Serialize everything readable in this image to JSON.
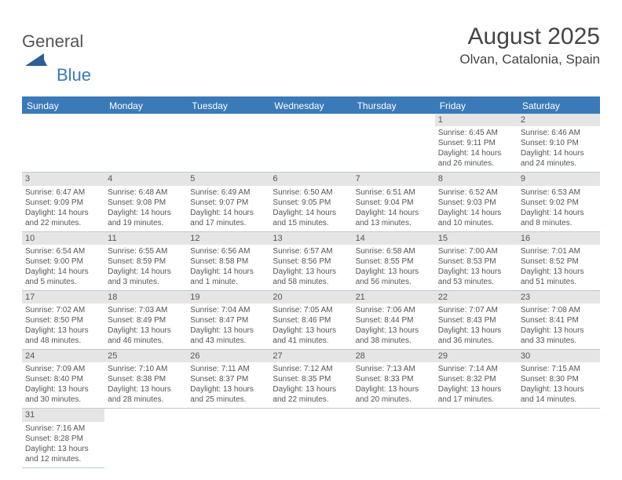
{
  "logo": {
    "part1": "General",
    "part2": "Blue"
  },
  "title": "August 2025",
  "location": "Olvan, Catalonia, Spain",
  "colors": {
    "header_bg": "#3a7ab8",
    "header_text": "#ffffff",
    "daynum_bg": "#e5e5e5",
    "grid_line": "#b9c9dc",
    "text": "#555555",
    "title_text": "#444444"
  },
  "day_headers": [
    "Sunday",
    "Monday",
    "Tuesday",
    "Wednesday",
    "Thursday",
    "Friday",
    "Saturday"
  ],
  "weeks": [
    [
      {
        "n": "",
        "sr": "",
        "ss": "",
        "dl": ""
      },
      {
        "n": "",
        "sr": "",
        "ss": "",
        "dl": ""
      },
      {
        "n": "",
        "sr": "",
        "ss": "",
        "dl": ""
      },
      {
        "n": "",
        "sr": "",
        "ss": "",
        "dl": ""
      },
      {
        "n": "",
        "sr": "",
        "ss": "",
        "dl": ""
      },
      {
        "n": "1",
        "sr": "Sunrise: 6:45 AM",
        "ss": "Sunset: 9:11 PM",
        "dl": "Daylight: 14 hours and 26 minutes."
      },
      {
        "n": "2",
        "sr": "Sunrise: 6:46 AM",
        "ss": "Sunset: 9:10 PM",
        "dl": "Daylight: 14 hours and 24 minutes."
      }
    ],
    [
      {
        "n": "3",
        "sr": "Sunrise: 6:47 AM",
        "ss": "Sunset: 9:09 PM",
        "dl": "Daylight: 14 hours and 22 minutes."
      },
      {
        "n": "4",
        "sr": "Sunrise: 6:48 AM",
        "ss": "Sunset: 9:08 PM",
        "dl": "Daylight: 14 hours and 19 minutes."
      },
      {
        "n": "5",
        "sr": "Sunrise: 6:49 AM",
        "ss": "Sunset: 9:07 PM",
        "dl": "Daylight: 14 hours and 17 minutes."
      },
      {
        "n": "6",
        "sr": "Sunrise: 6:50 AM",
        "ss": "Sunset: 9:05 PM",
        "dl": "Daylight: 14 hours and 15 minutes."
      },
      {
        "n": "7",
        "sr": "Sunrise: 6:51 AM",
        "ss": "Sunset: 9:04 PM",
        "dl": "Daylight: 14 hours and 13 minutes."
      },
      {
        "n": "8",
        "sr": "Sunrise: 6:52 AM",
        "ss": "Sunset: 9:03 PM",
        "dl": "Daylight: 14 hours and 10 minutes."
      },
      {
        "n": "9",
        "sr": "Sunrise: 6:53 AM",
        "ss": "Sunset: 9:02 PM",
        "dl": "Daylight: 14 hours and 8 minutes."
      }
    ],
    [
      {
        "n": "10",
        "sr": "Sunrise: 6:54 AM",
        "ss": "Sunset: 9:00 PM",
        "dl": "Daylight: 14 hours and 5 minutes."
      },
      {
        "n": "11",
        "sr": "Sunrise: 6:55 AM",
        "ss": "Sunset: 8:59 PM",
        "dl": "Daylight: 14 hours and 3 minutes."
      },
      {
        "n": "12",
        "sr": "Sunrise: 6:56 AM",
        "ss": "Sunset: 8:58 PM",
        "dl": "Daylight: 14 hours and 1 minute."
      },
      {
        "n": "13",
        "sr": "Sunrise: 6:57 AM",
        "ss": "Sunset: 8:56 PM",
        "dl": "Daylight: 13 hours and 58 minutes."
      },
      {
        "n": "14",
        "sr": "Sunrise: 6:58 AM",
        "ss": "Sunset: 8:55 PM",
        "dl": "Daylight: 13 hours and 56 minutes."
      },
      {
        "n": "15",
        "sr": "Sunrise: 7:00 AM",
        "ss": "Sunset: 8:53 PM",
        "dl": "Daylight: 13 hours and 53 minutes."
      },
      {
        "n": "16",
        "sr": "Sunrise: 7:01 AM",
        "ss": "Sunset: 8:52 PM",
        "dl": "Daylight: 13 hours and 51 minutes."
      }
    ],
    [
      {
        "n": "17",
        "sr": "Sunrise: 7:02 AM",
        "ss": "Sunset: 8:50 PM",
        "dl": "Daylight: 13 hours and 48 minutes."
      },
      {
        "n": "18",
        "sr": "Sunrise: 7:03 AM",
        "ss": "Sunset: 8:49 PM",
        "dl": "Daylight: 13 hours and 46 minutes."
      },
      {
        "n": "19",
        "sr": "Sunrise: 7:04 AM",
        "ss": "Sunset: 8:47 PM",
        "dl": "Daylight: 13 hours and 43 minutes."
      },
      {
        "n": "20",
        "sr": "Sunrise: 7:05 AM",
        "ss": "Sunset: 8:46 PM",
        "dl": "Daylight: 13 hours and 41 minutes."
      },
      {
        "n": "21",
        "sr": "Sunrise: 7:06 AM",
        "ss": "Sunset: 8:44 PM",
        "dl": "Daylight: 13 hours and 38 minutes."
      },
      {
        "n": "22",
        "sr": "Sunrise: 7:07 AM",
        "ss": "Sunset: 8:43 PM",
        "dl": "Daylight: 13 hours and 36 minutes."
      },
      {
        "n": "23",
        "sr": "Sunrise: 7:08 AM",
        "ss": "Sunset: 8:41 PM",
        "dl": "Daylight: 13 hours and 33 minutes."
      }
    ],
    [
      {
        "n": "24",
        "sr": "Sunrise: 7:09 AM",
        "ss": "Sunset: 8:40 PM",
        "dl": "Daylight: 13 hours and 30 minutes."
      },
      {
        "n": "25",
        "sr": "Sunrise: 7:10 AM",
        "ss": "Sunset: 8:38 PM",
        "dl": "Daylight: 13 hours and 28 minutes."
      },
      {
        "n": "26",
        "sr": "Sunrise: 7:11 AM",
        "ss": "Sunset: 8:37 PM",
        "dl": "Daylight: 13 hours and 25 minutes."
      },
      {
        "n": "27",
        "sr": "Sunrise: 7:12 AM",
        "ss": "Sunset: 8:35 PM",
        "dl": "Daylight: 13 hours and 22 minutes."
      },
      {
        "n": "28",
        "sr": "Sunrise: 7:13 AM",
        "ss": "Sunset: 8:33 PM",
        "dl": "Daylight: 13 hours and 20 minutes."
      },
      {
        "n": "29",
        "sr": "Sunrise: 7:14 AM",
        "ss": "Sunset: 8:32 PM",
        "dl": "Daylight: 13 hours and 17 minutes."
      },
      {
        "n": "30",
        "sr": "Sunrise: 7:15 AM",
        "ss": "Sunset: 8:30 PM",
        "dl": "Daylight: 13 hours and 14 minutes."
      }
    ],
    [
      {
        "n": "31",
        "sr": "Sunrise: 7:16 AM",
        "ss": "Sunset: 8:28 PM",
        "dl": "Daylight: 13 hours and 12 minutes."
      },
      {
        "n": "",
        "sr": "",
        "ss": "",
        "dl": ""
      },
      {
        "n": "",
        "sr": "",
        "ss": "",
        "dl": ""
      },
      {
        "n": "",
        "sr": "",
        "ss": "",
        "dl": ""
      },
      {
        "n": "",
        "sr": "",
        "ss": "",
        "dl": ""
      },
      {
        "n": "",
        "sr": "",
        "ss": "",
        "dl": ""
      },
      {
        "n": "",
        "sr": "",
        "ss": "",
        "dl": ""
      }
    ]
  ]
}
